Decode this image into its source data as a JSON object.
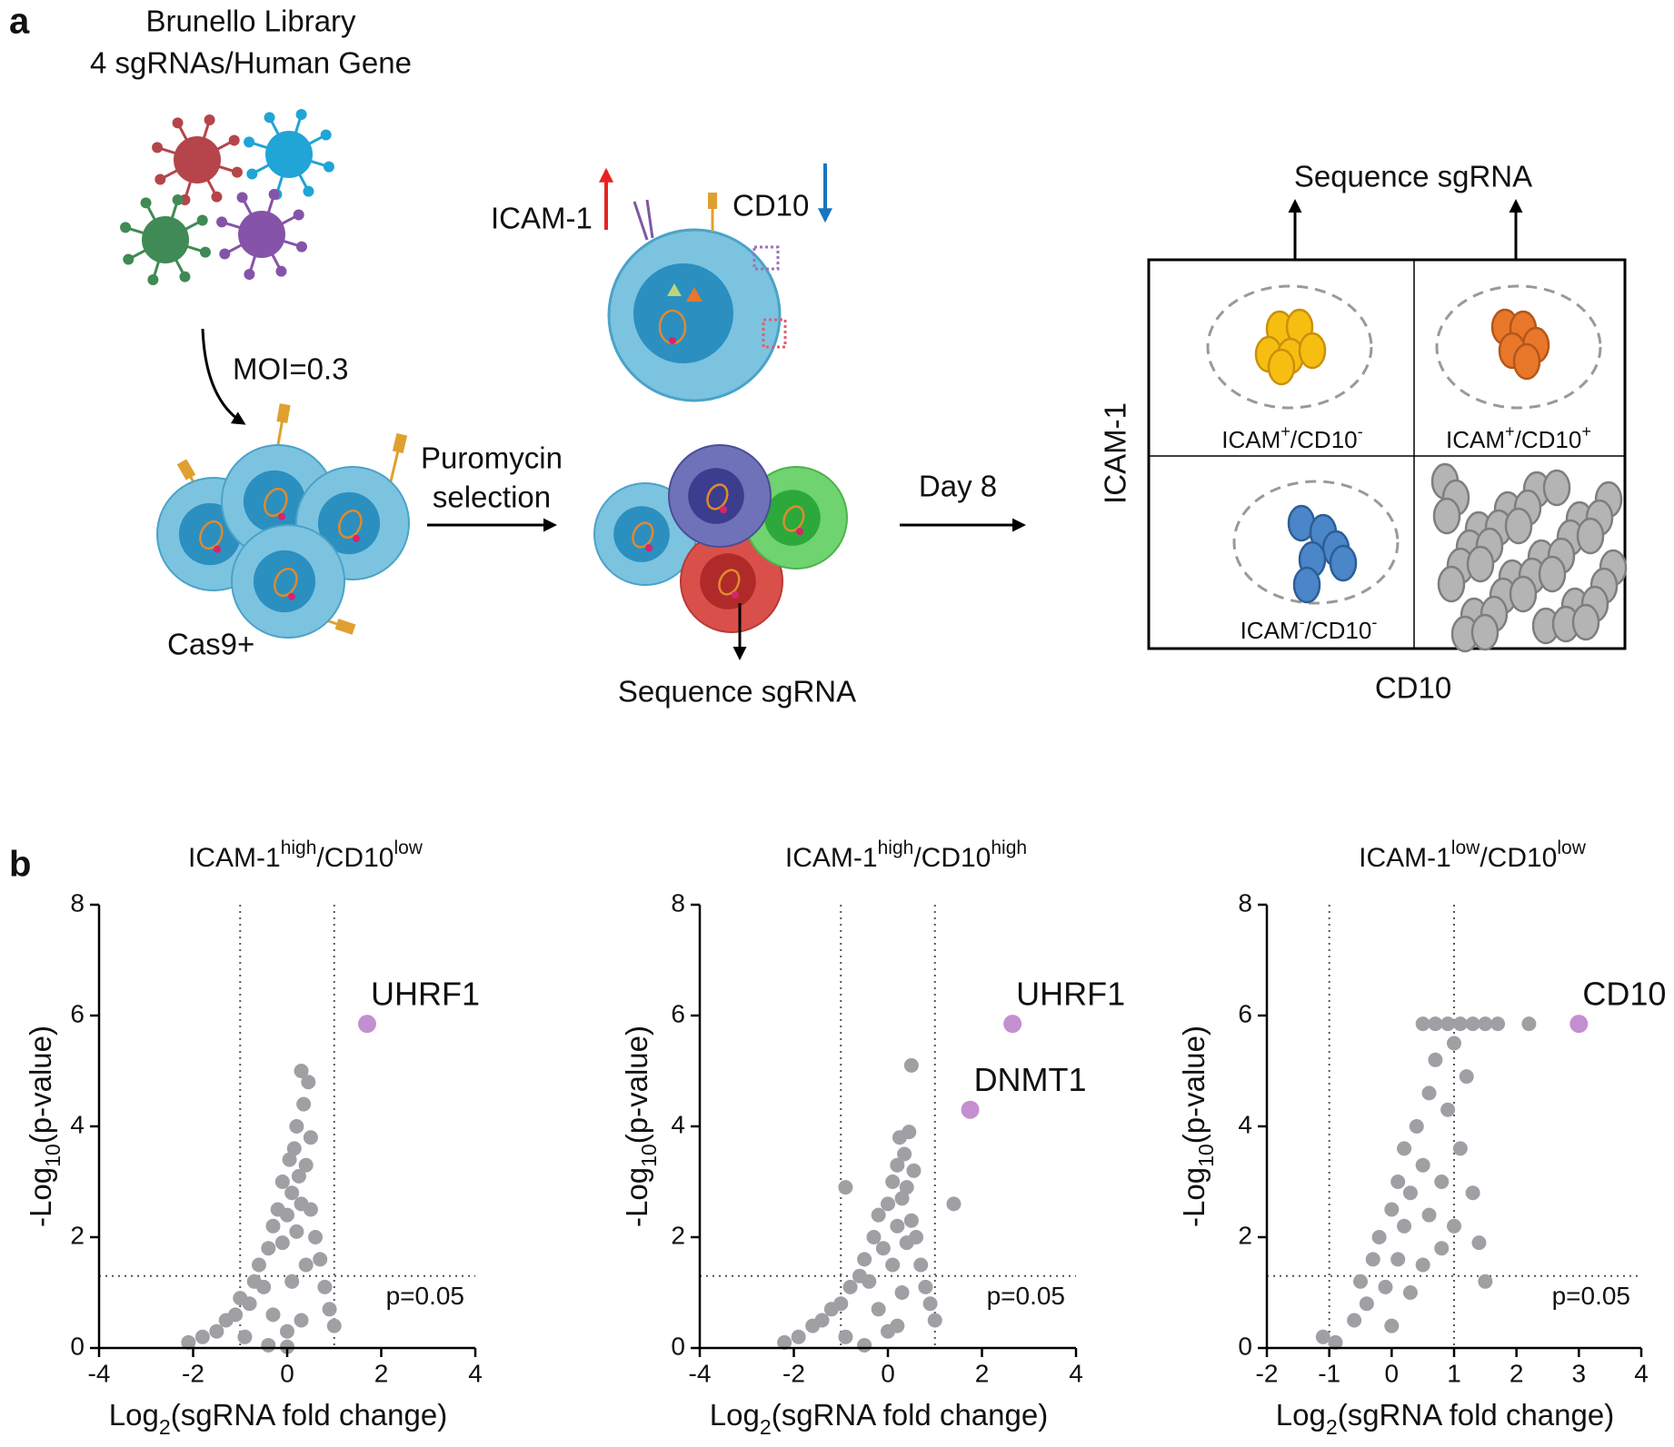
{
  "panel_labels": [
    "a",
    "b"
  ],
  "diagram": {
    "library": [
      "Brunello Library",
      "4 sgRNAs/Human Gene"
    ],
    "moi": "MOI=0.3",
    "cas9": "Cas9+",
    "markers": [
      "ICAM-1",
      "CD10"
    ],
    "selection": [
      "Puromycin",
      "selection"
    ],
    "sequence_left": "Sequence sgRNA",
    "day": "Day 8",
    "sequence_top": "Sequence sgRNA",
    "facs_y": "ICAM-1",
    "facs_x": "CD10",
    "quadrants": [
      [
        {
          "text": "ICAM"
        },
        {
          "text": "+",
          "sup": true
        },
        {
          "text": "/CD10"
        },
        {
          "text": "-",
          "sup": true
        }
      ],
      [
        {
          "text": "ICAM"
        },
        {
          "text": "+",
          "sup": true
        },
        {
          "text": "/CD10"
        },
        {
          "text": "+",
          "sup": true
        }
      ],
      [
        {
          "text": "ICAM"
        },
        {
          "text": "-",
          "sup": true
        },
        {
          "text": "/CD10"
        },
        {
          "text": "-",
          "sup": true
        }
      ]
    ]
  },
  "chart_data": [
    {
      "type": "scatter",
      "title": [
        {
          "text": "ICAM-1"
        },
        {
          "text": "high",
          "sup": true
        },
        {
          "text": "/CD10"
        },
        {
          "text": "low",
          "sup": true
        }
      ],
      "x_label": [
        {
          "text": "Log"
        },
        {
          "text": "2",
          "sub": true
        },
        {
          "text": "(sgRNA fold change)"
        }
      ],
      "y_label": [
        {
          "text": "-Log"
        },
        {
          "text": "10",
          "sub": true
        },
        {
          "text": "(p-value)"
        }
      ],
      "xlim": [
        -4,
        4
      ],
      "xticks": [
        -4,
        -2,
        0,
        2,
        4
      ],
      "ylim": [
        0,
        8
      ],
      "yticks": [
        0,
        2,
        4,
        6,
        8
      ],
      "vlines": [
        -1,
        1
      ],
      "hline": 1.3,
      "hline_label": "p=0.05",
      "series": [
        {
          "color": "#a0a0a4",
          "x": [
            -2.1,
            -1.8,
            -1.5,
            -1.3,
            -1.1,
            -1.0,
            -0.8,
            -0.7,
            -0.6,
            -0.5,
            -0.4,
            -0.3,
            -0.3,
            -0.2,
            -0.1,
            -0.1,
            0,
            0,
            0.05,
            0.1,
            0.1,
            0.15,
            0.2,
            0.2,
            0.25,
            0.3,
            0.3,
            0.35,
            0.4,
            0.4,
            0.45,
            0.5,
            0.5,
            0.6,
            0.7,
            0.8,
            0.9,
            1.0,
            -0.9,
            -0.4,
            0.0,
            0.3
          ],
          "y": [
            0.1,
            0.2,
            0.3,
            0.5,
            0.6,
            0.9,
            0.8,
            1.2,
            1.5,
            1.1,
            1.8,
            2.2,
            0.6,
            2.5,
            1.9,
            3.0,
            0.3,
            2.4,
            3.4,
            2.8,
            1.2,
            3.6,
            2.1,
            4.0,
            3.1,
            5.0,
            2.6,
            4.4,
            1.5,
            3.3,
            4.8,
            2.5,
            3.8,
            2.0,
            1.6,
            1.1,
            0.7,
            0.4,
            0.2,
            0.05,
            0.02,
            0.5
          ]
        },
        {
          "color": "#c48fd0",
          "x": [
            1.7
          ],
          "y": [
            5.85
          ],
          "labels": [
            "UHRF1"
          ]
        }
      ]
    },
    {
      "type": "scatter",
      "title": [
        {
          "text": "ICAM-1"
        },
        {
          "text": "high",
          "sup": true
        },
        {
          "text": "/CD10"
        },
        {
          "text": "high",
          "sup": true
        }
      ],
      "x_label": [
        {
          "text": "Log"
        },
        {
          "text": "2",
          "sub": true
        },
        {
          "text": "(sgRNA fold change)"
        }
      ],
      "y_label": [
        {
          "text": "-Log"
        },
        {
          "text": "10",
          "sub": true
        },
        {
          "text": "(p-value)"
        }
      ],
      "xlim": [
        -4,
        4
      ],
      "xticks": [
        -4,
        -2,
        0,
        2,
        4
      ],
      "ylim": [
        0,
        8
      ],
      "yticks": [
        0,
        2,
        4,
        6,
        8
      ],
      "vlines": [
        -1,
        1
      ],
      "hline": 1.3,
      "hline_label": "p=0.05",
      "series": [
        {
          "color": "#a0a0a4",
          "x": [
            -2.2,
            -1.9,
            -1.6,
            -1.4,
            -1.2,
            -1.0,
            -0.9,
            -0.8,
            -0.6,
            -0.5,
            -0.4,
            -0.3,
            -0.2,
            -0.2,
            -0.1,
            0,
            0,
            0.1,
            0.1,
            0.2,
            0.2,
            0.25,
            0.3,
            0.3,
            0.35,
            0.4,
            0.4,
            0.45,
            0.5,
            0.5,
            0.55,
            0.6,
            0.7,
            0.8,
            0.9,
            1.0,
            1.4,
            -0.9,
            -0.5,
            0.2
          ],
          "y": [
            0.1,
            0.2,
            0.4,
            0.5,
            0.7,
            0.8,
            2.9,
            1.1,
            1.3,
            1.6,
            1.2,
            2.0,
            2.4,
            0.7,
            1.8,
            2.6,
            0.3,
            3.0,
            1.5,
            3.3,
            2.2,
            3.8,
            2.7,
            1.0,
            3.5,
            2.9,
            1.9,
            3.9,
            5.1,
            2.3,
            3.2,
            2.0,
            1.5,
            1.1,
            0.8,
            0.5,
            2.6,
            0.2,
            0.05,
            0.4
          ]
        },
        {
          "color": "#c48fd0",
          "x": [
            2.65,
            1.75
          ],
          "y": [
            5.85,
            4.3
          ],
          "labels": [
            "UHRF1",
            "DNMT1"
          ]
        }
      ]
    },
    {
      "type": "scatter",
      "title": [
        {
          "text": "ICAM-1"
        },
        {
          "text": "low",
          "sup": true
        },
        {
          "text": "/CD10"
        },
        {
          "text": "low",
          "sup": true
        }
      ],
      "x_label": [
        {
          "text": "Log"
        },
        {
          "text": "2",
          "sub": true
        },
        {
          "text": "(sgRNA fold change)"
        }
      ],
      "y_label": [
        {
          "text": "-Log"
        },
        {
          "text": "10",
          "sub": true
        },
        {
          "text": "(p-value)"
        }
      ],
      "xlim": [
        -2,
        4
      ],
      "xticks": [
        -2,
        -1,
        0,
        1,
        2,
        3,
        4
      ],
      "ylim": [
        0,
        8
      ],
      "yticks": [
        0,
        2,
        4,
        6,
        8
      ],
      "vlines": [
        -1,
        1
      ],
      "hline": 1.3,
      "hline_label": "p=0.05",
      "series": [
        {
          "color": "#a0a0a4",
          "x": [
            -1.1,
            -0.9,
            -0.6,
            -0.5,
            -0.4,
            -0.3,
            -0.2,
            -0.1,
            0,
            0,
            0.1,
            0.1,
            0.2,
            0.2,
            0.3,
            0.3,
            0.4,
            0.5,
            0.5,
            0.6,
            0.6,
            0.7,
            0.8,
            0.8,
            0.9,
            1.0,
            1.0,
            1.1,
            1.2,
            1.3,
            1.4,
            1.5,
            0.5,
            0.7,
            0.9,
            1.1,
            1.3,
            1.5,
            1.7,
            2.2
          ],
          "y": [
            0.2,
            0.1,
            0.5,
            1.2,
            0.8,
            1.6,
            2.0,
            1.1,
            2.5,
            0.4,
            3.0,
            1.6,
            2.2,
            3.6,
            1.0,
            2.8,
            4.0,
            3.3,
            1.5,
            4.6,
            2.4,
            5.2,
            3.0,
            1.8,
            4.3,
            5.5,
            2.2,
            3.6,
            4.9,
            2.8,
            1.9,
            1.2,
            5.85,
            5.85,
            5.85,
            5.85,
            5.85,
            5.85,
            5.85,
            5.85
          ]
        },
        {
          "color": "#c48fd0",
          "x": [
            3
          ],
          "y": [
            5.85
          ],
          "labels": [
            "CD10"
          ]
        }
      ]
    }
  ]
}
